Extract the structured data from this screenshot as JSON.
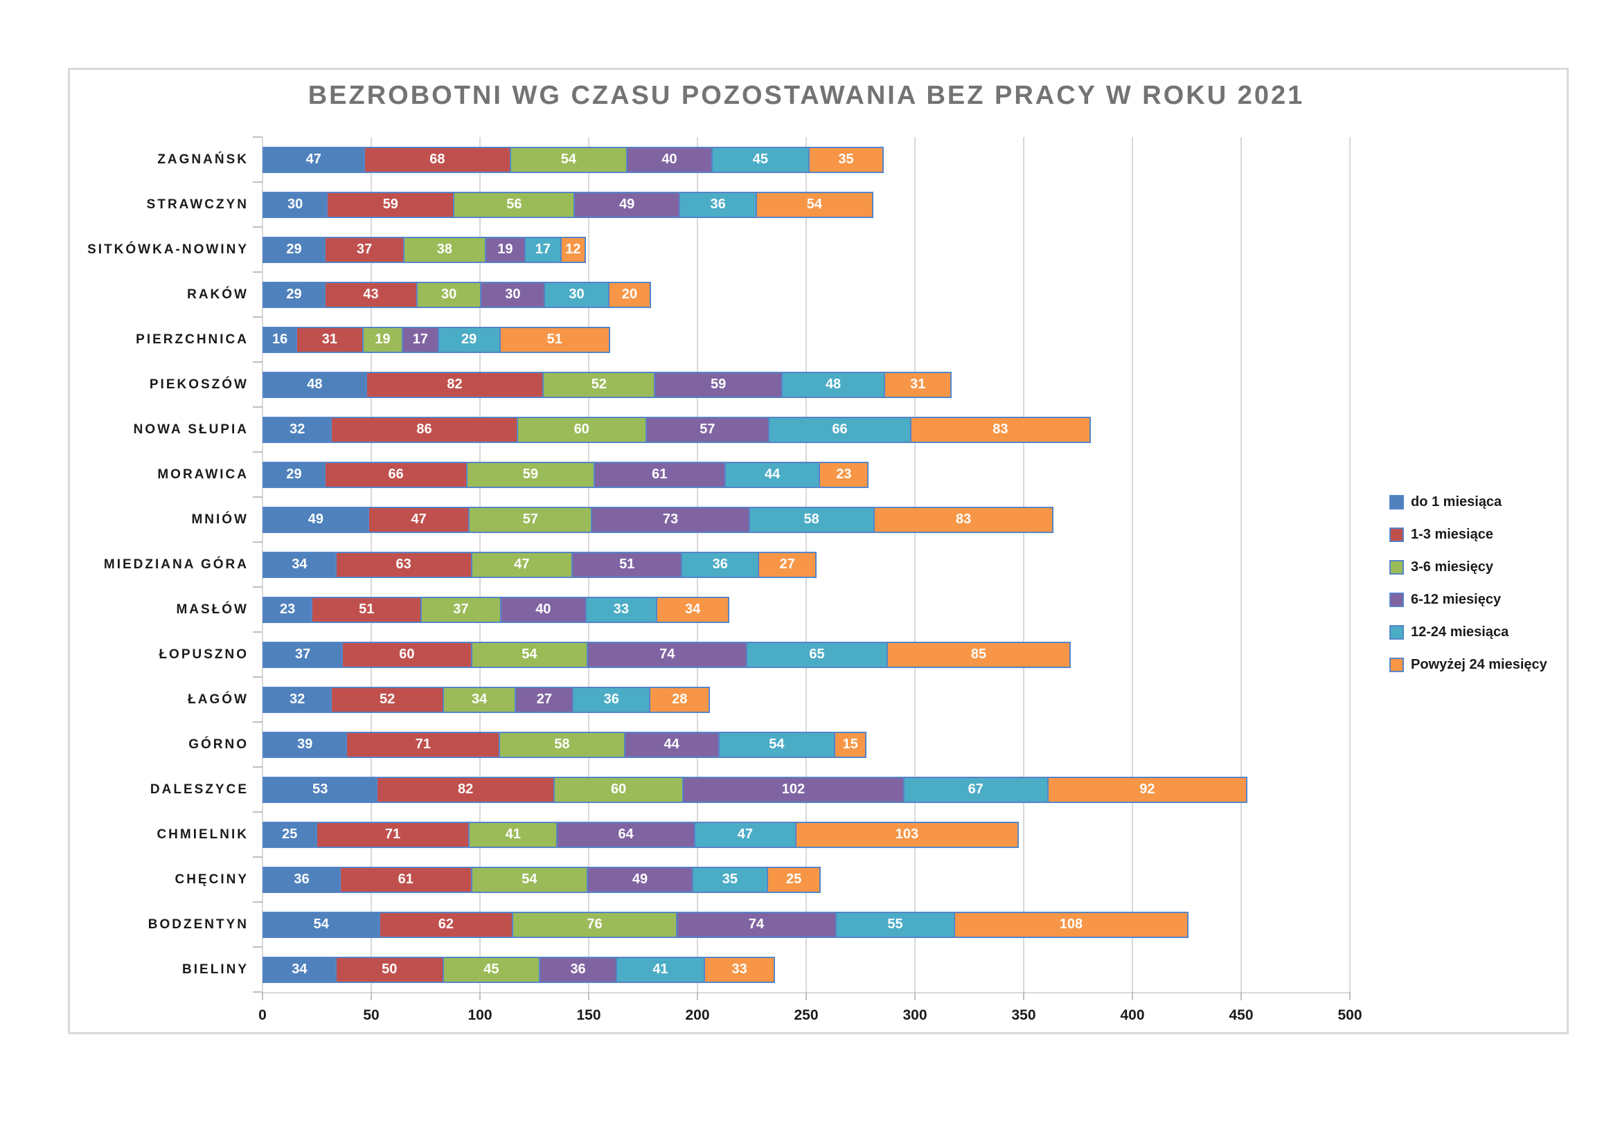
{
  "title": "BEZROBOTNI WG CZASU POZOSTAWANIA BEZ PRACY W ROKU 2021",
  "colors": {
    "grid": "#D9D9D9",
    "frame_border": "#D9D9D9",
    "title_text": "#737373",
    "bar_border": "#5585C8",
    "value_text": "#FFFFFF",
    "axis_tick": "#BFBFBF"
  },
  "chart_data": {
    "type": "bar",
    "orientation": "horizontal",
    "stacked": true,
    "title": "BEZROBOTNI WG CZASU POZOSTAWANIA BEZ PRACY W ROKU 2021",
    "categories": [
      "ZAGNAŃSK",
      "STRAWCZYN",
      "SITKÓWKA-NOWINY",
      "RAKÓW",
      "PIERZCHNICA",
      "PIEKOSZÓW",
      "NOWA SŁUPIA",
      "MORAWICA",
      "MNIÓW",
      "MIEDZIANA GÓRA",
      "MASŁÓW",
      "ŁOPUSZNO",
      "ŁAGÓW",
      "GÓRNO",
      "DALESZYCE",
      "CHMIELNIK",
      "CHĘCINY",
      "BODZENTYN",
      "BIELINY"
    ],
    "series": [
      {
        "name": "do 1 miesiąca",
        "color": "#4F81BD",
        "values": [
          47,
          30,
          29,
          29,
          16,
          48,
          32,
          29,
          49,
          34,
          23,
          37,
          32,
          39,
          53,
          25,
          36,
          54,
          34
        ]
      },
      {
        "name": "1-3 miesiące",
        "color": "#C0504D",
        "values": [
          68,
          59,
          37,
          43,
          31,
          82,
          86,
          66,
          47,
          63,
          51,
          60,
          52,
          71,
          82,
          71,
          61,
          62,
          50
        ]
      },
      {
        "name": "3-6 miesięcy",
        "color": "#9BBB59",
        "values": [
          54,
          56,
          38,
          30,
          19,
          52,
          60,
          59,
          57,
          47,
          37,
          54,
          34,
          58,
          60,
          41,
          54,
          76,
          45
        ]
      },
      {
        "name": "6-12 miesięcy",
        "color": "#8064A2",
        "values": [
          40,
          49,
          19,
          30,
          17,
          59,
          57,
          61,
          73,
          51,
          40,
          74,
          27,
          44,
          102,
          64,
          49,
          74,
          36
        ]
      },
      {
        "name": "12-24 miesiąca",
        "color": "#4BACC6",
        "values": [
          45,
          36,
          17,
          30,
          29,
          48,
          66,
          44,
          58,
          36,
          33,
          65,
          36,
          54,
          67,
          47,
          35,
          55,
          41
        ]
      },
      {
        "name": "Powyżej 24 miesięcy",
        "color": "#F79646",
        "values": [
          35,
          54,
          12,
          20,
          51,
          31,
          83,
          23,
          83,
          27,
          34,
          85,
          28,
          15,
          92,
          103,
          25,
          108,
          33
        ]
      }
    ],
    "x_ticks": [
      0,
      50,
      100,
      150,
      200,
      250,
      300,
      350,
      400,
      450,
      500
    ],
    "xlim": [
      0,
      500
    ],
    "grid": true,
    "legend_position": "right",
    "value_labels": "inside"
  }
}
